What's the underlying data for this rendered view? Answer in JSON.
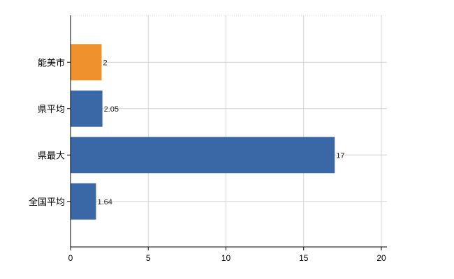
{
  "chart_data": {
    "type": "bar",
    "orientation": "horizontal",
    "categories": [
      "能美市",
      "県平均",
      "県最大",
      "全国平均"
    ],
    "values": [
      2,
      2.05,
      17,
      1.64
    ],
    "value_labels": [
      "2",
      "2.05",
      "17",
      "1.64"
    ],
    "bar_colors": [
      "#f0922b",
      "#3a68a6",
      "#3a68a6",
      "#3a68a6"
    ],
    "xlim": [
      0,
      20
    ],
    "x_ticks": [
      0,
      5,
      10,
      15,
      20
    ],
    "x_tick_labels": [
      "0",
      "5",
      "10",
      "15",
      "20"
    ],
    "grid": true,
    "title": "",
    "xlabel": "",
    "ylabel": ""
  }
}
